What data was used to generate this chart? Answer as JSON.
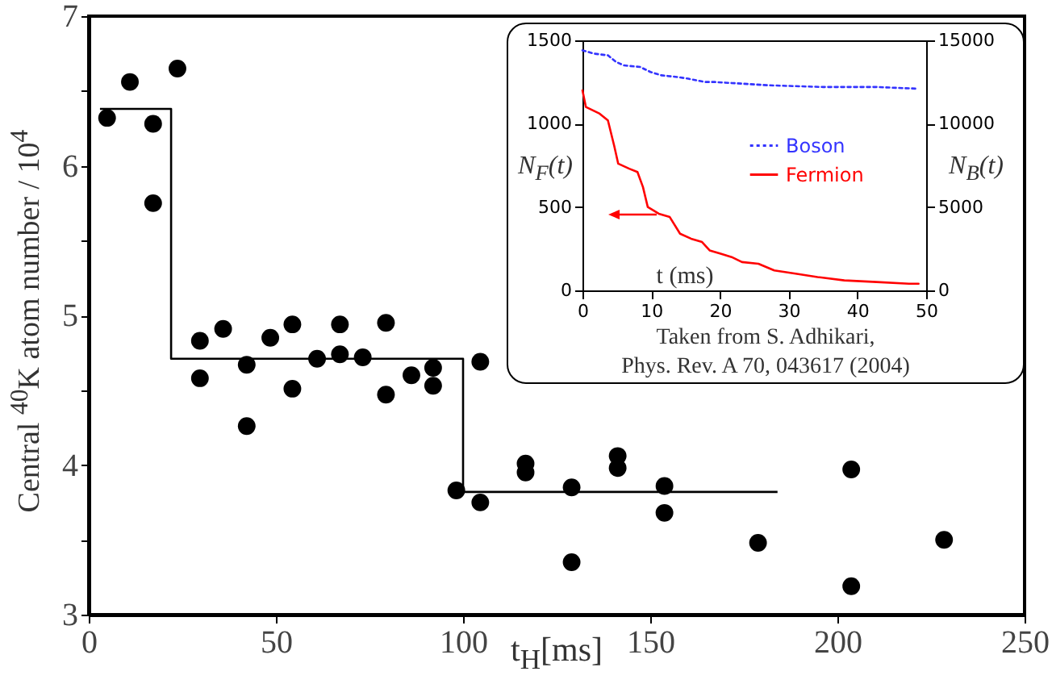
{
  "chart_data": [
    {
      "type": "scatter",
      "xlabel": "t$_{H}$[ms]",
      "ylabel": "Central $^{40}$K atom number / 10$^{4}$",
      "xlim": [
        0,
        250
      ],
      "xticks": [
        0,
        50,
        100,
        150,
        200,
        250
      ],
      "ylim": [
        3,
        7
      ],
      "yticks": [
        3,
        {
          "value": 3.5,
          "label": null
        },
        4,
        {
          "value": 4.5,
          "label": null
        },
        5,
        {
          "value": 5.5,
          "label": null
        },
        6,
        {
          "value": 6.5,
          "label": null
        },
        7
      ],
      "series": [
        {
          "marker": "circle",
          "color": "#000000",
          "x": [
            4.9,
            11,
            17.2,
            17.2,
            23.7,
            29.7,
            29.7,
            35.9,
            42.2,
            42.2,
            48.5,
            54.4,
            54.4,
            61,
            67.1,
            67.1,
            73.2,
            79.4,
            79.4,
            86.2,
            92,
            92,
            98.2,
            104.6,
            104.6,
            116.7,
            116.7,
            129,
            129,
            141.3,
            141.3,
            153.8,
            153.8,
            178.8,
            203.7,
            203.7,
            228.5
          ],
          "values": [
            6.32,
            6.56,
            6.28,
            5.75,
            6.65,
            4.83,
            4.58,
            4.91,
            4.67,
            4.26,
            4.85,
            4.94,
            4.51,
            4.71,
            4.94,
            4.74,
            4.72,
            4.95,
            4.47,
            4.6,
            4.65,
            4.53,
            3.83,
            4.69,
            3.75,
            4.01,
            3.95,
            3.85,
            3.35,
            4.06,
            3.98,
            3.86,
            3.68,
            3.48,
            3.97,
            3.19,
            3.5
          ]
        },
        {
          "type": "step",
          "color": "#000000",
          "x": [
            3,
            22,
            100,
            184
          ],
          "values": [
            6.38,
            4.71,
            3.82,
            3.82
          ]
        }
      ]
    },
    {
      "type": "line",
      "xlabel": "t (ms)",
      "ylabel": "N$_{F}$(t)",
      "y2label": "N$_{B}$(t)",
      "xlim": [
        0,
        50
      ],
      "xticks": [
        0,
        10,
        20,
        30,
        40,
        50
      ],
      "ylim": [
        0,
        1500
      ],
      "yticks": [
        0,
        500,
        1000,
        1500
      ],
      "y2lim": [
        0,
        15000
      ],
      "y2ticks": [
        0,
        5000,
        10000,
        15000
      ],
      "legend": "right",
      "annotations": [
        "Taken from S. Adhikari,",
        "Phys. Rev. A 70, 043617 (2004)"
      ],
      "series": [
        {
          "name": "Boson",
          "color": "#3333ff",
          "line_style": "dotted",
          "axis": "y2",
          "x": [
            0,
            1.7,
            3.7,
            4.9,
            6,
            8.4,
            9.9,
            11.5,
            13.8,
            15.4,
            17.8,
            19.3,
            23.2,
            27.2,
            35,
            42.8,
            48.7
          ],
          "values": [
            14400,
            14200,
            14100,
            13700,
            13500,
            13400,
            13100,
            12900,
            12800,
            12700,
            12500,
            12500,
            12400,
            12300,
            12200,
            12200,
            12100
          ]
        },
        {
          "name": "Fermion",
          "color": "#ff0000",
          "line_style": "solid",
          "axis": "y",
          "x": [
            0,
            0.5,
            2.5,
            3.7,
            4.6,
            5.2,
            6.8,
            8,
            8.8,
            9.5,
            11.1,
            12.7,
            14.2,
            15.8,
            17.4,
            18.5,
            20.1,
            21.7,
            23.2,
            25.6,
            27.9,
            31,
            34.2,
            38.1,
            42.8,
            47.5,
            48.9
          ],
          "values": [
            1200,
            1100,
            1060,
            1020,
            870,
            760,
            730,
            710,
            620,
            500,
            460,
            440,
            340,
            310,
            290,
            240,
            220,
            200,
            170,
            160,
            120,
            100,
            80,
            60,
            50,
            40,
            40
          ]
        }
      ]
    }
  ]
}
